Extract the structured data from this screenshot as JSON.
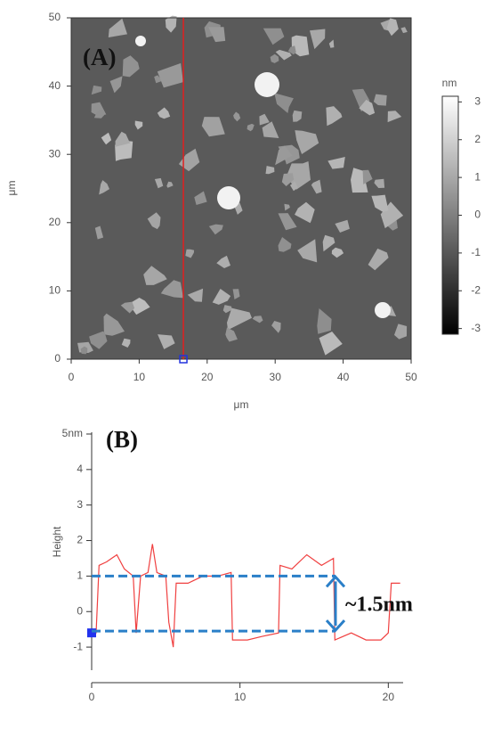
{
  "chart_data": [
    {
      "type": "image",
      "title": "(A)",
      "xlabel": "μm",
      "ylabel": "μm",
      "xlim": [
        0,
        50
      ],
      "xticks": [
        0,
        10,
        20,
        30,
        40,
        50
      ],
      "ylim": [
        0,
        50
      ],
      "yticks": [
        0,
        10,
        20,
        30,
        40,
        50
      ],
      "cursor_x": 16.5,
      "cursor_color": "#e02020",
      "colorbar": {
        "label": "nm",
        "lim": [
          -3.15,
          3.15
        ],
        "ticks": [
          3,
          2,
          1,
          0,
          -1,
          -2,
          -3
        ]
      }
    },
    {
      "type": "line",
      "title": "(B)",
      "ylabel": "Height",
      "annotation": "~1.5nm",
      "xlim": [
        0,
        21
      ],
      "xticks": [
        0,
        10,
        20
      ],
      "ylim": [
        -1.65,
        5.05
      ],
      "yticks": [
        -1,
        0,
        1,
        2,
        3,
        4,
        {
          "value": 5,
          "label": "5nm"
        }
      ],
      "reference_levels": [
        1.0,
        -0.55
      ],
      "series": [
        {
          "color": "#f04040",
          "x": [
            0,
            0.3,
            0.5,
            1,
            1.7,
            2.2,
            2.8,
            3.0,
            3.3,
            3.8,
            4.1,
            4.4,
            5.0,
            5.2,
            5.5,
            5.7,
            6.5,
            7.5,
            8.5,
            9.4,
            9.5,
            10.5,
            11.5,
            12.6,
            12.7,
            13.5,
            14.5,
            15.5,
            16.3,
            16.4,
            17.5,
            18.5,
            19.5,
            20.0,
            20.2,
            20.8
          ],
          "values": [
            -0.6,
            -0.6,
            1.3,
            1.4,
            1.6,
            1.2,
            1.0,
            -0.6,
            1.0,
            1.1,
            1.9,
            1.1,
            1.0,
            -0.3,
            -1.0,
            0.8,
            0.8,
            1.0,
            1.0,
            1.1,
            -0.8,
            -0.8,
            -0.7,
            -0.6,
            1.3,
            1.2,
            1.6,
            1.3,
            1.5,
            -0.8,
            -0.6,
            -0.8,
            -0.8,
            -0.6,
            0.8,
            0.8
          ]
        }
      ]
    }
  ]
}
